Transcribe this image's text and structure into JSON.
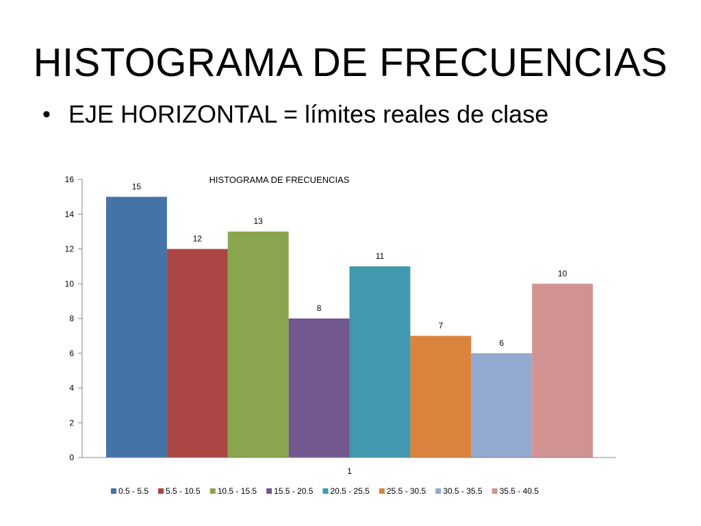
{
  "slide": {
    "title": "HISTOGRAMA DE FRECUENCIAS",
    "bullet": "EJE HORIZONTAL = límites reales de clase"
  },
  "chart_data": {
    "type": "bar",
    "title": "HISTOGRAMA DE FRECUENCIAS",
    "categories": [
      "1"
    ],
    "ylim": [
      0,
      16
    ],
    "yticks": [
      0,
      2,
      4,
      6,
      8,
      10,
      12,
      14,
      16
    ],
    "grid": false,
    "legend_position": "bottom",
    "series": [
      {
        "name": "0.5 - 5.5",
        "values": [
          15
        ],
        "color": "#4572A7"
      },
      {
        "name": "5.5 - 10.5",
        "values": [
          12
        ],
        "color": "#AA4643"
      },
      {
        "name": "10.5 - 15.5",
        "values": [
          13
        ],
        "color": "#89A54E"
      },
      {
        "name": "15.5 - 20.5",
        "values": [
          8
        ],
        "color": "#71588F"
      },
      {
        "name": "20.5 - 25.5",
        "values": [
          11
        ],
        "color": "#4198AF"
      },
      {
        "name": "25.5 - 30.5",
        "values": [
          7
        ],
        "color": "#DB843D"
      },
      {
        "name": "30.5 - 35.5",
        "values": [
          6
        ],
        "color": "#93A9CF"
      },
      {
        "name": "35.5 - 40.5",
        "values": [
          10
        ],
        "color": "#D19392"
      }
    ]
  }
}
